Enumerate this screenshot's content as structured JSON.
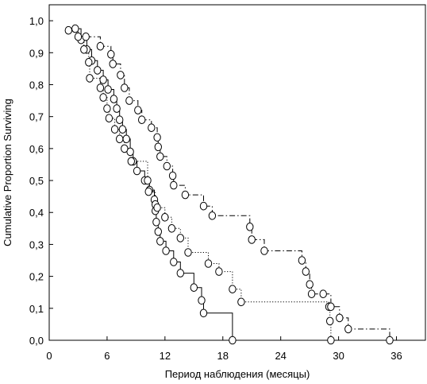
{
  "chart_data": {
    "type": "line",
    "subtype": "kaplan-meier-step",
    "title": "",
    "xlabel": "Период наблюдения (месяцы)",
    "ylabel": "Cumulative Proportion Surviving",
    "xlim": [
      0,
      39
    ],
    "ylim": [
      0,
      1.05
    ],
    "xticks": [
      0,
      6,
      12,
      18,
      24,
      30,
      36
    ],
    "yticks": [
      0.0,
      0.1,
      0.2,
      0.3,
      0.4,
      0.5,
      0.6,
      0.7,
      0.8,
      0.9,
      1.0
    ],
    "xtick_labels": [
      "0",
      "6",
      "12",
      "18",
      "24",
      "30",
      "36"
    ],
    "ytick_labels": [
      "0,0",
      "0,1",
      "0,2",
      "0,3",
      "0,4",
      "0,5",
      "0,6",
      "0,7",
      "0,8",
      "0,9",
      "1,0"
    ],
    "grid": false,
    "legend": "none",
    "marker": "open-circle",
    "series": [
      {
        "line_style": "solid",
        "color": "#000000",
        "points": [
          [
            2.7,
            0.975
          ],
          [
            3.3,
            0.94
          ],
          [
            3.9,
            0.91
          ],
          [
            4.4,
            0.875
          ],
          [
            5.0,
            0.845
          ],
          [
            5.6,
            0.815
          ],
          [
            6.1,
            0.785
          ],
          [
            6.7,
            0.755
          ],
          [
            7.0,
            0.725
          ],
          [
            7.3,
            0.69
          ],
          [
            7.6,
            0.66
          ],
          [
            8.0,
            0.63
          ],
          [
            8.4,
            0.59
          ],
          [
            8.7,
            0.56
          ],
          [
            9.1,
            0.53
          ],
          [
            9.9,
            0.5
          ],
          [
            10.4,
            0.47
          ],
          [
            10.9,
            0.44
          ],
          [
            11.0,
            0.405
          ],
          [
            11.1,
            0.37
          ],
          [
            11.3,
            0.34
          ],
          [
            11.5,
            0.31
          ],
          [
            12.1,
            0.28
          ],
          [
            12.9,
            0.245
          ],
          [
            13.6,
            0.21
          ],
          [
            15.0,
            0.165
          ],
          [
            15.8,
            0.125
          ],
          [
            16.0,
            0.085
          ],
          [
            19.0,
            0.0
          ]
        ]
      },
      {
        "line_style": "dotted",
        "color": "#000000",
        "points": [
          [
            2.0,
            0.97
          ],
          [
            3.0,
            0.95
          ],
          [
            3.6,
            0.91
          ],
          [
            4.1,
            0.87
          ],
          [
            4.2,
            0.82
          ],
          [
            5.3,
            0.79
          ],
          [
            5.6,
            0.76
          ],
          [
            6.0,
            0.725
          ],
          [
            6.2,
            0.695
          ],
          [
            6.8,
            0.66
          ],
          [
            7.3,
            0.63
          ],
          [
            7.8,
            0.6
          ],
          [
            8.5,
            0.56
          ],
          [
            10.2,
            0.5
          ],
          [
            10.3,
            0.465
          ],
          [
            11.0,
            0.425
          ],
          [
            11.2,
            0.415
          ],
          [
            12.0,
            0.385
          ],
          [
            12.7,
            0.35
          ],
          [
            13.6,
            0.32
          ],
          [
            14.4,
            0.275
          ],
          [
            16.5,
            0.24
          ],
          [
            17.6,
            0.215
          ],
          [
            19.0,
            0.16
          ],
          [
            19.9,
            0.12
          ],
          [
            29.0,
            0.105
          ],
          [
            29.1,
            0.06
          ],
          [
            29.2,
            0.0
          ]
        ]
      },
      {
        "line_style": "dash-dot",
        "color": "#000000",
        "points": [
          [
            3.8,
            0.95
          ],
          [
            5.3,
            0.92
          ],
          [
            6.4,
            0.895
          ],
          [
            6.6,
            0.865
          ],
          [
            7.4,
            0.83
          ],
          [
            7.8,
            0.79
          ],
          [
            8.3,
            0.75
          ],
          [
            9.2,
            0.72
          ],
          [
            9.6,
            0.69
          ],
          [
            10.6,
            0.665
          ],
          [
            11.2,
            0.635
          ],
          [
            11.3,
            0.605
          ],
          [
            11.5,
            0.575
          ],
          [
            12.2,
            0.545
          ],
          [
            12.8,
            0.515
          ],
          [
            12.9,
            0.485
          ],
          [
            14.1,
            0.455
          ],
          [
            16.0,
            0.42
          ],
          [
            16.9,
            0.39
          ],
          [
            20.8,
            0.355
          ],
          [
            21.0,
            0.315
          ],
          [
            22.3,
            0.28
          ],
          [
            26.2,
            0.25
          ],
          [
            26.6,
            0.215
          ],
          [
            27.0,
            0.175
          ],
          [
            27.2,
            0.145
          ],
          [
            28.4,
            0.145
          ],
          [
            29.2,
            0.105
          ],
          [
            30.1,
            0.07
          ],
          [
            31.0,
            0.035
          ],
          [
            35.3,
            0.0
          ]
        ]
      }
    ]
  }
}
